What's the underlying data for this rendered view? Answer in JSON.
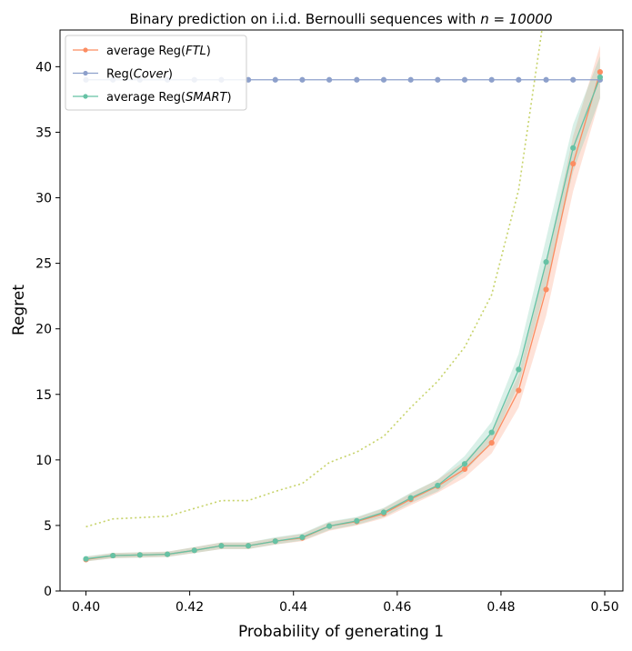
{
  "chart_data": {
    "type": "line",
    "title_prefix": "Binary prediction on i.i.d. Bernoulli sequences with ",
    "title_math": "n = 10000",
    "xlabel": "Probability of generating 1",
    "ylabel": "Regret",
    "xlim": [
      0.395,
      0.5035
    ],
    "ylim": [
      0,
      42.8
    ],
    "xticks": [
      0.4,
      0.42,
      0.44,
      0.46,
      0.48,
      0.5
    ],
    "xtick_labels": [
      "0.40",
      "0.42",
      "0.44",
      "0.46",
      "0.48",
      "0.50"
    ],
    "yticks": [
      0,
      5,
      10,
      15,
      20,
      25,
      30,
      35,
      40
    ],
    "ytick_labels": [
      "0",
      "5",
      "10",
      "15",
      "20",
      "25",
      "30",
      "35",
      "40"
    ],
    "legend_position": "top-left",
    "x": [
      0.4,
      0.4052,
      0.4104,
      0.4157,
      0.4209,
      0.4261,
      0.4313,
      0.4365,
      0.4417,
      0.4469,
      0.4522,
      0.4574,
      0.4626,
      0.4678,
      0.473,
      0.4782,
      0.4834,
      0.4887,
      0.4939,
      0.4991
    ],
    "series": [
      {
        "name_prefix": "average Reg(",
        "name_italic": "FTL",
        "name_suffix": ")",
        "color": "#fc8d62",
        "marker": "circle",
        "values": [
          2.4,
          2.7,
          2.75,
          2.8,
          3.1,
          3.45,
          3.45,
          3.8,
          4.05,
          4.95,
          5.3,
          5.9,
          7.0,
          8.0,
          9.3,
          11.3,
          15.3,
          23.0,
          32.6,
          39.6
        ],
        "band_lower": [
          2.25,
          2.5,
          2.55,
          2.6,
          2.9,
          3.2,
          3.2,
          3.55,
          3.8,
          4.6,
          5.0,
          5.55,
          6.55,
          7.5,
          8.65,
          10.5,
          14.0,
          21.0,
          30.5,
          37.6
        ],
        "band_upper": [
          2.6,
          2.9,
          2.95,
          3.0,
          3.35,
          3.7,
          3.7,
          4.05,
          4.35,
          5.25,
          5.6,
          6.3,
          7.45,
          8.5,
          9.9,
          12.1,
          16.5,
          25.0,
          34.7,
          41.6
        ]
      },
      {
        "name_prefix": "Reg(",
        "name_italic": "Cover",
        "name_suffix": ")",
        "color": "#8da0cb",
        "marker": "circle",
        "values": [
          39.0,
          39.0,
          39.0,
          39.0,
          39.0,
          39.0,
          39.0,
          39.0,
          39.0,
          39.0,
          39.0,
          39.0,
          39.0,
          39.0,
          39.0,
          39.0,
          39.0,
          39.0,
          39.0,
          39.0
        ]
      },
      {
        "name_prefix": "average Reg(",
        "name_italic": "SMART",
        "name_suffix": ")",
        "color": "#66c2a5",
        "marker": "circle",
        "values": [
          2.45,
          2.7,
          2.75,
          2.8,
          3.1,
          3.45,
          3.45,
          3.8,
          4.1,
          4.95,
          5.35,
          6.0,
          7.1,
          8.05,
          9.7,
          12.1,
          16.9,
          25.1,
          33.8,
          39.2
        ],
        "band_lower": [
          2.25,
          2.5,
          2.55,
          2.6,
          2.9,
          3.2,
          3.2,
          3.55,
          3.85,
          4.65,
          5.05,
          5.65,
          6.7,
          7.6,
          9.1,
          11.3,
          15.7,
          23.3,
          32.0,
          37.6
        ],
        "band_upper": [
          2.65,
          2.9,
          2.95,
          3.0,
          3.35,
          3.7,
          3.7,
          4.1,
          4.4,
          5.3,
          5.65,
          6.35,
          7.5,
          8.5,
          10.3,
          12.9,
          18.1,
          26.9,
          35.6,
          40.8
        ]
      },
      {
        "color": "#c7d36a",
        "style": "dotted",
        "x": [
          0.4,
          0.4052,
          0.4104,
          0.4157,
          0.4209,
          0.4261,
          0.4313,
          0.4365,
          0.4417,
          0.4469,
          0.4522,
          0.4574,
          0.4626,
          0.4678,
          0.473,
          0.4782,
          0.4834,
          0.4887
        ],
        "values": [
          4.9,
          5.5,
          5.6,
          5.7,
          6.3,
          6.9,
          6.9,
          7.6,
          8.2,
          9.8,
          10.6,
          11.8,
          14.0,
          16.0,
          18.6,
          22.6,
          30.6,
          45.0
        ]
      }
    ]
  }
}
